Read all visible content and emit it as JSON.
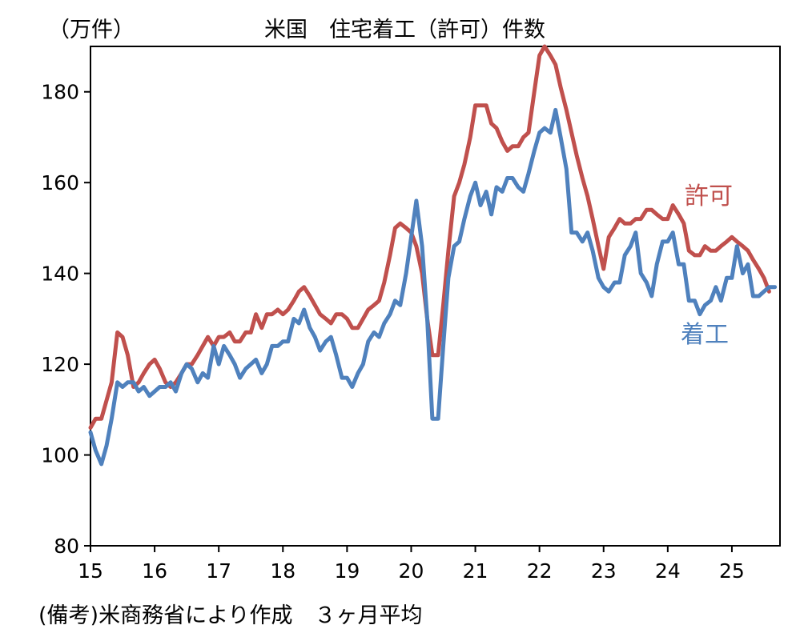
{
  "chart_data": {
    "type": "line",
    "title": "米国　住宅着工（許可）件数",
    "unit_label": "（万件）",
    "note": "(備考)米商務省により作成　３ヶ月平均",
    "ylim": [
      80,
      190
    ],
    "yticks": [
      80,
      100,
      120,
      140,
      160,
      180
    ],
    "xlim": [
      2015.0,
      2025.75
    ],
    "xticks": [
      {
        "pos": 2015,
        "label": "15"
      },
      {
        "pos": 2016,
        "label": "16"
      },
      {
        "pos": 2017,
        "label": "17"
      },
      {
        "pos": 2018,
        "label": "18"
      },
      {
        "pos": 2019,
        "label": "19"
      },
      {
        "pos": 2020,
        "label": "20"
      },
      {
        "pos": 2021,
        "label": "21"
      },
      {
        "pos": 2022,
        "label": "22"
      },
      {
        "pos": 2023,
        "label": "23"
      },
      {
        "pos": 2024,
        "label": "24"
      },
      {
        "pos": 2025,
        "label": "25"
      }
    ],
    "grid": false,
    "series": [
      {
        "name": "許可",
        "color": "#c0504d",
        "points": [
          [
            2015.0,
            106
          ],
          [
            2015.08,
            108
          ],
          [
            2015.17,
            108
          ],
          [
            2015.25,
            112
          ],
          [
            2015.33,
            116
          ],
          [
            2015.42,
            127
          ],
          [
            2015.5,
            126
          ],
          [
            2015.58,
            122
          ],
          [
            2015.67,
            115
          ],
          [
            2015.75,
            116
          ],
          [
            2015.83,
            118
          ],
          [
            2015.92,
            120
          ],
          [
            2016.0,
            121
          ],
          [
            2016.08,
            119
          ],
          [
            2016.17,
            116
          ],
          [
            2016.25,
            115
          ],
          [
            2016.33,
            116
          ],
          [
            2016.42,
            118
          ],
          [
            2016.5,
            120
          ],
          [
            2016.58,
            120
          ],
          [
            2016.67,
            122
          ],
          [
            2016.75,
            124
          ],
          [
            2016.83,
            126
          ],
          [
            2016.92,
            124
          ],
          [
            2017.0,
            126
          ],
          [
            2017.08,
            126
          ],
          [
            2017.17,
            127
          ],
          [
            2017.25,
            125
          ],
          [
            2017.33,
            125
          ],
          [
            2017.42,
            127
          ],
          [
            2017.5,
            127
          ],
          [
            2017.58,
            131
          ],
          [
            2017.67,
            128
          ],
          [
            2017.75,
            131
          ],
          [
            2017.83,
            131
          ],
          [
            2017.92,
            132
          ],
          [
            2018.0,
            131
          ],
          [
            2018.08,
            132
          ],
          [
            2018.17,
            134
          ],
          [
            2018.25,
            136
          ],
          [
            2018.33,
            137
          ],
          [
            2018.42,
            135
          ],
          [
            2018.5,
            133
          ],
          [
            2018.58,
            131
          ],
          [
            2018.67,
            130
          ],
          [
            2018.75,
            129
          ],
          [
            2018.83,
            131
          ],
          [
            2018.92,
            131
          ],
          [
            2019.0,
            130
          ],
          [
            2019.08,
            128
          ],
          [
            2019.17,
            128
          ],
          [
            2019.25,
            130
          ],
          [
            2019.33,
            132
          ],
          [
            2019.42,
            133
          ],
          [
            2019.5,
            134
          ],
          [
            2019.58,
            138
          ],
          [
            2019.67,
            144
          ],
          [
            2019.75,
            150
          ],
          [
            2019.83,
            151
          ],
          [
            2019.92,
            150
          ],
          [
            2020.0,
            149
          ],
          [
            2020.08,
            146
          ],
          [
            2020.17,
            140
          ],
          [
            2020.25,
            130
          ],
          [
            2020.33,
            122
          ],
          [
            2020.42,
            122
          ],
          [
            2020.5,
            133
          ],
          [
            2020.58,
            145
          ],
          [
            2020.67,
            157
          ],
          [
            2020.75,
            160
          ],
          [
            2020.83,
            164
          ],
          [
            2020.92,
            170
          ],
          [
            2021.0,
            177
          ],
          [
            2021.08,
            177
          ],
          [
            2021.17,
            177
          ],
          [
            2021.25,
            173
          ],
          [
            2021.33,
            172
          ],
          [
            2021.42,
            169
          ],
          [
            2021.5,
            167
          ],
          [
            2021.58,
            168
          ],
          [
            2021.67,
            168
          ],
          [
            2021.75,
            170
          ],
          [
            2021.83,
            171
          ],
          [
            2021.92,
            180
          ],
          [
            2022.0,
            188
          ],
          [
            2022.08,
            190
          ],
          [
            2022.17,
            188
          ],
          [
            2022.25,
            186
          ],
          [
            2022.33,
            181
          ],
          [
            2022.42,
            176
          ],
          [
            2022.5,
            171
          ],
          [
            2022.58,
            166
          ],
          [
            2022.67,
            161
          ],
          [
            2022.75,
            157
          ],
          [
            2022.83,
            152
          ],
          [
            2022.92,
            146
          ],
          [
            2023.0,
            141
          ],
          [
            2023.08,
            148
          ],
          [
            2023.17,
            150
          ],
          [
            2023.25,
            152
          ],
          [
            2023.33,
            151
          ],
          [
            2023.42,
            151
          ],
          [
            2023.5,
            152
          ],
          [
            2023.58,
            152
          ],
          [
            2023.67,
            154
          ],
          [
            2023.75,
            154
          ],
          [
            2023.83,
            153
          ],
          [
            2023.92,
            152
          ],
          [
            2024.0,
            152
          ],
          [
            2024.08,
            155
          ],
          [
            2024.17,
            153
          ],
          [
            2024.25,
            151
          ],
          [
            2024.33,
            145
          ],
          [
            2024.42,
            144
          ],
          [
            2024.5,
            144
          ],
          [
            2024.58,
            146
          ],
          [
            2024.67,
            145
          ],
          [
            2024.75,
            145
          ],
          [
            2024.83,
            146
          ],
          [
            2024.92,
            147
          ],
          [
            2025.0,
            148
          ],
          [
            2025.08,
            147
          ],
          [
            2025.17,
            146
          ],
          [
            2025.25,
            145
          ],
          [
            2025.33,
            143
          ],
          [
            2025.42,
            141
          ],
          [
            2025.5,
            139
          ],
          [
            2025.58,
            136
          ]
        ]
      },
      {
        "name": "着工",
        "color": "#4f81bd",
        "points": [
          [
            2015.0,
            105
          ],
          [
            2015.08,
            101
          ],
          [
            2015.17,
            98
          ],
          [
            2015.25,
            102
          ],
          [
            2015.33,
            108
          ],
          [
            2015.42,
            116
          ],
          [
            2015.5,
            115
          ],
          [
            2015.58,
            116
          ],
          [
            2015.67,
            116
          ],
          [
            2015.75,
            114
          ],
          [
            2015.83,
            115
          ],
          [
            2015.92,
            113
          ],
          [
            2016.0,
            114
          ],
          [
            2016.08,
            115
          ],
          [
            2016.17,
            115
          ],
          [
            2016.25,
            116
          ],
          [
            2016.33,
            114
          ],
          [
            2016.42,
            118
          ],
          [
            2016.5,
            120
          ],
          [
            2016.58,
            119
          ],
          [
            2016.67,
            116
          ],
          [
            2016.75,
            118
          ],
          [
            2016.83,
            117
          ],
          [
            2016.92,
            124
          ],
          [
            2017.0,
            120
          ],
          [
            2017.08,
            124
          ],
          [
            2017.17,
            122
          ],
          [
            2017.25,
            120
          ],
          [
            2017.33,
            117
          ],
          [
            2017.42,
            119
          ],
          [
            2017.5,
            120
          ],
          [
            2017.58,
            121
          ],
          [
            2017.67,
            118
          ],
          [
            2017.75,
            120
          ],
          [
            2017.83,
            124
          ],
          [
            2017.92,
            124
          ],
          [
            2018.0,
            125
          ],
          [
            2018.08,
            125
          ],
          [
            2018.17,
            130
          ],
          [
            2018.25,
            129
          ],
          [
            2018.33,
            132
          ],
          [
            2018.42,
            128
          ],
          [
            2018.5,
            126
          ],
          [
            2018.58,
            123
          ],
          [
            2018.67,
            125
          ],
          [
            2018.75,
            126
          ],
          [
            2018.83,
            122
          ],
          [
            2018.92,
            117
          ],
          [
            2019.0,
            117
          ],
          [
            2019.08,
            115
          ],
          [
            2019.17,
            118
          ],
          [
            2019.25,
            120
          ],
          [
            2019.33,
            125
          ],
          [
            2019.42,
            127
          ],
          [
            2019.5,
            126
          ],
          [
            2019.58,
            129
          ],
          [
            2019.67,
            131
          ],
          [
            2019.75,
            134
          ],
          [
            2019.83,
            133
          ],
          [
            2019.92,
            140
          ],
          [
            2020.0,
            148
          ],
          [
            2020.08,
            156
          ],
          [
            2020.17,
            146
          ],
          [
            2020.25,
            130
          ],
          [
            2020.33,
            108
          ],
          [
            2020.42,
            108
          ],
          [
            2020.5,
            124
          ],
          [
            2020.58,
            139
          ],
          [
            2020.67,
            146
          ],
          [
            2020.75,
            147
          ],
          [
            2020.83,
            152
          ],
          [
            2020.92,
            157
          ],
          [
            2021.0,
            160
          ],
          [
            2021.08,
            155
          ],
          [
            2021.17,
            158
          ],
          [
            2021.25,
            153
          ],
          [
            2021.33,
            159
          ],
          [
            2021.42,
            158
          ],
          [
            2021.5,
            161
          ],
          [
            2021.58,
            161
          ],
          [
            2021.67,
            159
          ],
          [
            2021.75,
            158
          ],
          [
            2021.83,
            162
          ],
          [
            2021.92,
            167
          ],
          [
            2022.0,
            171
          ],
          [
            2022.08,
            172
          ],
          [
            2022.17,
            171
          ],
          [
            2022.25,
            176
          ],
          [
            2022.33,
            170
          ],
          [
            2022.42,
            163
          ],
          [
            2022.5,
            149
          ],
          [
            2022.58,
            149
          ],
          [
            2022.67,
            147
          ],
          [
            2022.75,
            149
          ],
          [
            2022.83,
            145
          ],
          [
            2022.92,
            139
          ],
          [
            2023.0,
            137
          ],
          [
            2023.08,
            136
          ],
          [
            2023.17,
            138
          ],
          [
            2023.25,
            138
          ],
          [
            2023.33,
            144
          ],
          [
            2023.42,
            146
          ],
          [
            2023.5,
            149
          ],
          [
            2023.58,
            140
          ],
          [
            2023.67,
            138
          ],
          [
            2023.75,
            135
          ],
          [
            2023.83,
            142
          ],
          [
            2023.92,
            147
          ],
          [
            2024.0,
            147
          ],
          [
            2024.08,
            149
          ],
          [
            2024.17,
            142
          ],
          [
            2024.25,
            142
          ],
          [
            2024.33,
            134
          ],
          [
            2024.42,
            134
          ],
          [
            2024.5,
            131
          ],
          [
            2024.58,
            133
          ],
          [
            2024.67,
            134
          ],
          [
            2024.75,
            137
          ],
          [
            2024.83,
            134
          ],
          [
            2024.92,
            139
          ],
          [
            2025.0,
            139
          ],
          [
            2025.08,
            146
          ],
          [
            2025.17,
            140
          ],
          [
            2025.25,
            142
          ],
          [
            2025.33,
            135
          ],
          [
            2025.42,
            135
          ],
          [
            2025.5,
            136
          ],
          [
            2025.58,
            137
          ],
          [
            2025.67,
            137
          ]
        ]
      }
    ]
  }
}
